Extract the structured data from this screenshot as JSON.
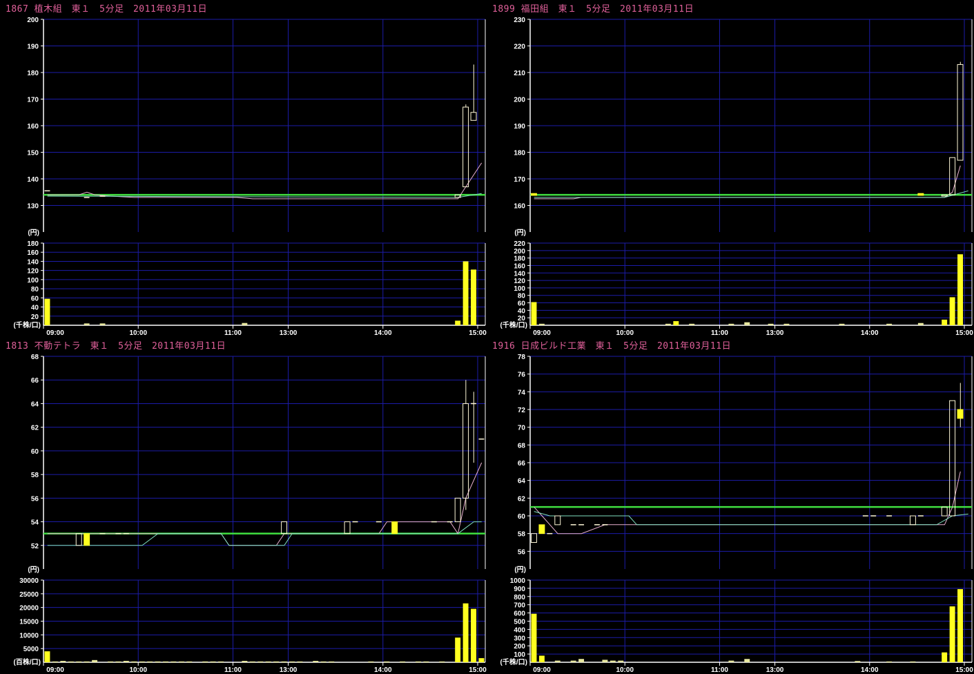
{
  "time_axis": {
    "ticks": [
      "09:00",
      "10:00",
      "11:00",
      "13:00",
      "14:00",
      "15:00"
    ],
    "sessions": [
      [
        "09:00",
        "11:00"
      ],
      [
        "12:30",
        "15:00"
      ]
    ],
    "interval_minutes": 5
  },
  "colors": {
    "background": "#000000",
    "grid": "#1c1ca8",
    "axis": "#ffffff",
    "title": "#e0609a",
    "ref_line": "#40e040",
    "ma1": "#e8b0d0",
    "ma2": "#80e0c0",
    "candle_up": "#fff8d8",
    "candle_down_fill": "#ffff20",
    "volume": "#ffff20",
    "volume_small": "#e8e8a0"
  },
  "chart_data": [
    {
      "type": "candlestick",
      "title": "1867 植木組　東１　5分足　2011年03月11日",
      "price": {
        "ylim": [
          120,
          200
        ],
        "ticks": [
          130,
          140,
          150,
          160,
          170,
          180,
          190,
          200
        ],
        "unit_label": "(円)"
      },
      "volume": {
        "ylim": [
          0,
          180
        ],
        "ticks": [
          20,
          40,
          60,
          80,
          100,
          120,
          140,
          160,
          180
        ],
        "unit_label": "(千株/口)",
        "bars": [
          [
            "09:00",
            58
          ],
          [
            "09:25",
            4
          ],
          [
            "09:35",
            4
          ],
          [
            "12:30",
            5
          ],
          [
            "14:45",
            10
          ],
          [
            "14:50",
            140
          ],
          [
            "14:55",
            122
          ]
        ]
      },
      "ref_line": 134,
      "candles": [
        {
          "t": "09:00",
          "o": 135.5,
          "h": 135.5,
          "l": 135.5,
          "c": 135.5
        },
        {
          "t": "09:25",
          "o": 133,
          "h": 133,
          "l": 133,
          "c": 133
        },
        {
          "t": "09:35",
          "o": 133.5,
          "h": 133.5,
          "l": 133.5,
          "c": 133.5
        },
        {
          "t": "14:45",
          "o": 133,
          "h": 134,
          "l": 133,
          "c": 134
        },
        {
          "t": "14:50",
          "o": 137,
          "h": 168,
          "l": 137,
          "c": 167
        },
        {
          "t": "14:55",
          "o": 162,
          "h": 183,
          "l": 162,
          "c": 165
        }
      ],
      "ma1": [
        [
          "09:00",
          134
        ],
        [
          "09:20",
          134
        ],
        [
          "09:25",
          135
        ],
        [
          "09:30",
          134
        ],
        [
          "09:40",
          133.5
        ],
        [
          "09:55",
          133
        ],
        [
          "11:00",
          133
        ],
        [
          "12:35",
          132.5
        ],
        [
          "14:45",
          132.5
        ],
        [
          "14:50",
          137
        ],
        [
          "15:00",
          146
        ]
      ],
      "ma2": [
        [
          "09:00",
          133.5
        ],
        [
          "14:45",
          133
        ],
        [
          "14:50",
          133.5
        ],
        [
          "15:00",
          134.5
        ]
      ]
    },
    {
      "type": "candlestick",
      "title": "1899 福田組　東１　5分足　2011年03月11日",
      "price": {
        "ylim": [
          150,
          230
        ],
        "ticks": [
          160,
          170,
          180,
          190,
          200,
          210,
          220,
          230
        ],
        "unit_label": "(円)"
      },
      "volume": {
        "ylim": [
          0,
          220
        ],
        "ticks": [
          20,
          40,
          60,
          80,
          100,
          120,
          140,
          160,
          180,
          200,
          220
        ],
        "unit_label": "(千株/口)",
        "bars": [
          [
            "09:00",
            62
          ],
          [
            "09:05",
            4
          ],
          [
            "10:25",
            4
          ],
          [
            "10:30",
            11
          ],
          [
            "10:40",
            4
          ],
          [
            "12:30",
            4
          ],
          [
            "12:40",
            8
          ],
          [
            "12:55",
            4
          ],
          [
            "13:05",
            4
          ],
          [
            "13:40",
            4
          ],
          [
            "14:10",
            4
          ],
          [
            "14:30",
            6
          ],
          [
            "14:45",
            15
          ],
          [
            "14:50",
            75
          ],
          [
            "14:55",
            190
          ]
        ]
      },
      "ref_line": 164,
      "candles": [
        {
          "t": "09:00",
          "o": 164.5,
          "h": 164.5,
          "l": 163.8,
          "c": 163.8,
          "filled": true
        },
        {
          "t": "14:30",
          "o": 164.5,
          "h": 164.5,
          "l": 163.8,
          "c": 163.8,
          "filled": true
        },
        {
          "t": "14:45",
          "o": 163.5,
          "h": 164,
          "l": 163.5,
          "c": 164
        },
        {
          "t": "14:50",
          "o": 164,
          "h": 178,
          "l": 164,
          "c": 178
        },
        {
          "t": "14:55",
          "o": 177,
          "h": 214,
          "l": 177,
          "c": 213
        }
      ],
      "ma1": [
        [
          "09:00",
          162.5
        ],
        [
          "09:25",
          162.5
        ],
        [
          "09:30",
          163
        ],
        [
          "14:45",
          163
        ],
        [
          "14:50",
          165
        ],
        [
          "14:55",
          175
        ]
      ],
      "ma2": [
        [
          "09:00",
          163
        ],
        [
          "14:45",
          163
        ],
        [
          "15:00",
          165.5
        ]
      ]
    },
    {
      "type": "candlestick",
      "title": "1813 不動テトラ　東１　5分足　2011年03月11日",
      "price": {
        "ylim": [
          50,
          68
        ],
        "ticks": [
          52,
          54,
          56,
          58,
          60,
          62,
          64,
          66,
          68
        ],
        "unit_label": "(円)"
      },
      "volume": {
        "ylim": [
          0,
          30000
        ],
        "ticks": [
          5000,
          10000,
          15000,
          20000,
          25000,
          30000
        ],
        "unit_label": "(百株/口)",
        "bars": [
          [
            "09:00",
            4000
          ],
          [
            "09:05",
            300
          ],
          [
            "09:10",
            500
          ],
          [
            "09:15",
            300
          ],
          [
            "09:20",
            300
          ],
          [
            "09:25",
            300
          ],
          [
            "09:30",
            800
          ],
          [
            "09:40",
            300
          ],
          [
            "09:45",
            300
          ],
          [
            "09:50",
            500
          ],
          [
            "09:55",
            300
          ],
          [
            "10:00",
            300
          ],
          [
            "10:05",
            300
          ],
          [
            "10:10",
            300
          ],
          [
            "10:15",
            300
          ],
          [
            "10:20",
            300
          ],
          [
            "10:25",
            300
          ],
          [
            "10:30",
            300
          ],
          [
            "10:40",
            300
          ],
          [
            "10:45",
            300
          ],
          [
            "10:50",
            300
          ],
          [
            "12:30",
            500
          ],
          [
            "12:35",
            300
          ],
          [
            "12:40",
            300
          ],
          [
            "12:45",
            300
          ],
          [
            "12:50",
            300
          ],
          [
            "12:55",
            300
          ],
          [
            "13:00",
            300
          ],
          [
            "13:05",
            300
          ],
          [
            "13:15",
            500
          ],
          [
            "13:20",
            300
          ],
          [
            "13:25",
            300
          ],
          [
            "13:50",
            300
          ],
          [
            "14:00",
            300
          ],
          [
            "14:10",
            300
          ],
          [
            "14:20",
            300
          ],
          [
            "14:25",
            300
          ],
          [
            "14:35",
            300
          ],
          [
            "14:45",
            9000
          ],
          [
            "14:50",
            21500
          ],
          [
            "14:55",
            19500
          ],
          [
            "15:00",
            1500
          ]
        ]
      },
      "ref_line": 53,
      "candles": [
        {
          "t": "09:20",
          "o": 52,
          "h": 53,
          "l": 52,
          "c": 53
        },
        {
          "t": "09:25",
          "o": 53,
          "h": 53,
          "l": 52,
          "c": 52,
          "filled": true
        },
        {
          "t": "09:35",
          "o": 53,
          "h": 53,
          "l": 53,
          "c": 53
        },
        {
          "t": "09:45",
          "o": 53,
          "h": 53,
          "l": 53,
          "c": 53
        },
        {
          "t": "09:50",
          "o": 53,
          "h": 53,
          "l": 53,
          "c": 53
        },
        {
          "t": "12:55",
          "o": 53,
          "h": 54,
          "l": 53,
          "c": 54
        },
        {
          "t": "13:35",
          "o": 53,
          "h": 54,
          "l": 53,
          "c": 54
        },
        {
          "t": "13:40",
          "o": 54,
          "h": 54,
          "l": 54,
          "c": 54
        },
        {
          "t": "13:55",
          "o": 54,
          "h": 54,
          "l": 54,
          "c": 54
        },
        {
          "t": "14:05",
          "o": 54,
          "h": 54,
          "l": 53,
          "c": 53,
          "filled": true
        },
        {
          "t": "14:30",
          "o": 54,
          "h": 54,
          "l": 54,
          "c": 54
        },
        {
          "t": "14:40",
          "o": 54,
          "h": 54,
          "l": 54,
          "c": 54
        },
        {
          "t": "14:45",
          "o": 54,
          "h": 56,
          "l": 54,
          "c": 56
        },
        {
          "t": "14:50",
          "o": 56,
          "h": 66,
          "l": 55,
          "c": 64
        },
        {
          "t": "14:55",
          "o": 64,
          "h": 65,
          "l": 59,
          "c": 64
        },
        {
          "t": "15:00",
          "o": 61,
          "h": 61,
          "l": 61,
          "c": 61
        }
      ],
      "ma1": [
        [
          "09:00",
          53
        ],
        [
          "10:50",
          53
        ],
        [
          "10:55",
          52
        ],
        [
          "12:50",
          52
        ],
        [
          "12:55",
          53
        ],
        [
          "13:55",
          53
        ],
        [
          "14:00",
          54
        ],
        [
          "14:40",
          54
        ],
        [
          "14:45",
          53
        ],
        [
          "14:50",
          56
        ],
        [
          "15:00",
          59
        ]
      ],
      "ma2": [
        [
          "09:00",
          52
        ],
        [
          "10:00",
          52
        ],
        [
          "10:10",
          53
        ],
        [
          "10:50",
          53
        ],
        [
          "10:55",
          52
        ],
        [
          "12:55",
          52
        ],
        [
          "13:00",
          53
        ],
        [
          "14:40",
          53
        ],
        [
          "14:45",
          53
        ],
        [
          "14:55",
          54
        ],
        [
          "15:00",
          54
        ]
      ]
    },
    {
      "type": "candlestick",
      "title": "1916 日成ビルド工業　東１　5分足　2011年03月11日",
      "price": {
        "ylim": [
          54,
          78
        ],
        "ticks": [
          56,
          58,
          60,
          62,
          64,
          66,
          68,
          70,
          72,
          74,
          76,
          78
        ],
        "unit_label": "(円)"
      },
      "volume": {
        "ylim": [
          0,
          1000
        ],
        "ticks": [
          100,
          200,
          300,
          400,
          500,
          600,
          700,
          800,
          900,
          1000
        ],
        "unit_label": "(千株/口)",
        "bars": [
          [
            "09:00",
            590
          ],
          [
            "09:05",
            80
          ],
          [
            "09:15",
            20
          ],
          [
            "09:25",
            20
          ],
          [
            "09:30",
            40
          ],
          [
            "09:45",
            30
          ],
          [
            "09:50",
            20
          ],
          [
            "09:55",
            20
          ],
          [
            "12:30",
            20
          ],
          [
            "12:40",
            40
          ],
          [
            "13:50",
            15
          ],
          [
            "14:10",
            10
          ],
          [
            "14:25",
            10
          ],
          [
            "14:45",
            120
          ],
          [
            "14:50",
            680
          ],
          [
            "14:55",
            890
          ]
        ]
      },
      "ref_line": 61,
      "candles": [
        {
          "t": "09:00",
          "o": 57,
          "h": 58,
          "l": 57,
          "c": 58
        },
        {
          "t": "09:05",
          "o": 59,
          "h": 59,
          "l": 58,
          "c": 58,
          "filled": true
        },
        {
          "t": "09:10",
          "o": 58,
          "h": 58,
          "l": 58,
          "c": 58
        },
        {
          "t": "09:15",
          "o": 59,
          "h": 60,
          "l": 59,
          "c": 60
        },
        {
          "t": "09:25",
          "o": 59,
          "h": 59,
          "l": 59,
          "c": 59
        },
        {
          "t": "09:30",
          "o": 59,
          "h": 59,
          "l": 59,
          "c": 59
        },
        {
          "t": "09:40",
          "o": 59,
          "h": 59,
          "l": 59,
          "c": 59
        },
        {
          "t": "09:45",
          "o": 59,
          "h": 59,
          "l": 59,
          "c": 59
        },
        {
          "t": "13:55",
          "o": 60,
          "h": 60,
          "l": 60,
          "c": 60
        },
        {
          "t": "14:00",
          "o": 60,
          "h": 60,
          "l": 60,
          "c": 60
        },
        {
          "t": "14:10",
          "o": 60,
          "h": 60,
          "l": 60,
          "c": 60
        },
        {
          "t": "14:25",
          "o": 59,
          "h": 60,
          "l": 59,
          "c": 60
        },
        {
          "t": "14:30",
          "o": 60,
          "h": 60,
          "l": 60,
          "c": 60
        },
        {
          "t": "14:45",
          "o": 60,
          "h": 61,
          "l": 60,
          "c": 61
        },
        {
          "t": "14:50",
          "o": 60,
          "h": 73,
          "l": 60,
          "c": 73
        },
        {
          "t": "14:55",
          "o": 72,
          "h": 75,
          "l": 70,
          "c": 71,
          "filled": true
        }
      ],
      "ma1": [
        [
          "09:00",
          61
        ],
        [
          "09:05",
          60
        ],
        [
          "09:10",
          59
        ],
        [
          "09:15",
          58
        ],
        [
          "09:30",
          58
        ],
        [
          "09:45",
          59
        ],
        [
          "14:45",
          59
        ],
        [
          "14:50",
          61
        ],
        [
          "14:55",
          65
        ]
      ],
      "ma2": [
        [
          "09:00",
          60.5
        ],
        [
          "09:10",
          60
        ],
        [
          "10:00",
          60
        ],
        [
          "10:05",
          59
        ],
        [
          "14:40",
          59
        ],
        [
          "14:50",
          60
        ],
        [
          "15:00",
          60.2
        ]
      ]
    }
  ]
}
